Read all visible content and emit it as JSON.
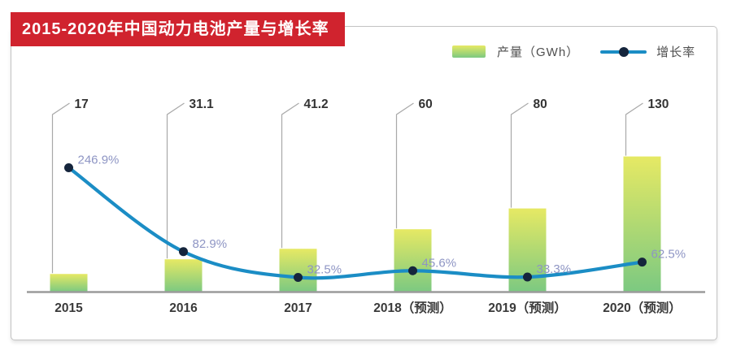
{
  "title": "2015-2020年中国动力电池产量与增长率",
  "legend": {
    "bar_label": "产量（GWh）",
    "line_label": "增长率"
  },
  "colors": {
    "banner_red": "#d0232e",
    "bar_top": "#e6e964",
    "bar_bottom": "#7cc981",
    "line_blue": "#1b8dc5",
    "dot_navy": "#15253c",
    "pct_label": "#8e95c4",
    "value_label": "#333333",
    "x_label": "#3a3a3a",
    "axis_gray": "#9b9b9b",
    "leader_gray": "#a9a9a9"
  },
  "chart_data": {
    "type": "bar",
    "subtype": "bar-line-combo",
    "title": "2015-2020年中国动力电池产量与增长率",
    "categories": [
      "2015",
      "2016",
      "2017",
      "2018（预测）",
      "2019（预测）",
      "2020（预测）"
    ],
    "series": [
      {
        "name": "产量（GWh）",
        "type": "bar",
        "values": [
          17,
          31.1,
          41.2,
          60,
          80,
          130
        ]
      },
      {
        "name": "增长率",
        "type": "line",
        "unit": "%",
        "values": [
          246.9,
          82.9,
          32.5,
          45.6,
          33.3,
          62.5
        ]
      }
    ],
    "bar_value_labels": [
      "17",
      "31.1",
      "41.2",
      "60",
      "80",
      "130"
    ],
    "pct_value_labels": [
      "246.9%",
      "82.9%",
      "32.5%",
      "45.6%",
      "33.3%",
      "62.5%"
    ],
    "xlabel": "",
    "ylabel": "",
    "grid": false,
    "legend_position": "top-right"
  }
}
